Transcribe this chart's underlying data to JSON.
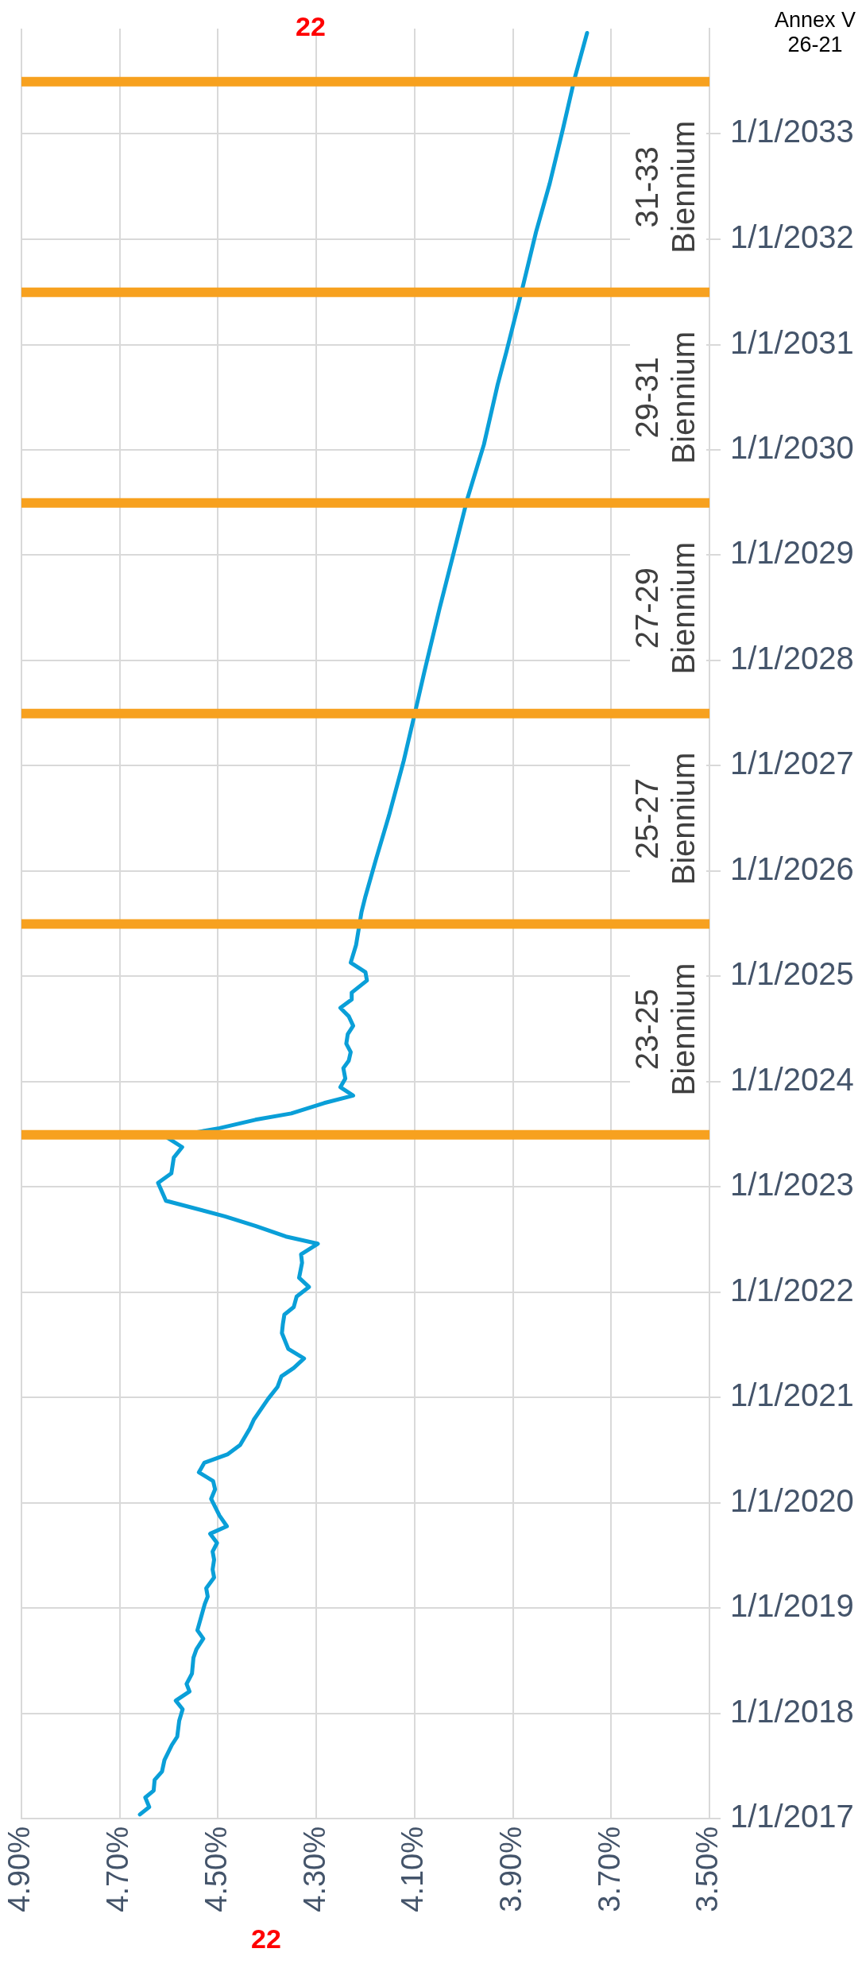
{
  "chart_data": {
    "type": "line",
    "orientation": "horizontal",
    "marker": "none",
    "grid": true,
    "annotations": [
      "22",
      "22",
      "Annex V\n26-21",
      "23-25 Biennium",
      "25-27 Biennium",
      "27-29 Biennium",
      "29-31 Biennium",
      "31-33 Biennium"
    ],
    "x": [
      "2017-01-15",
      "2017-02-10",
      "2017-03-15",
      "2017-04-08",
      "2017-05-15",
      "2017-06-13",
      "2017-07-23",
      "2017-09-13",
      "2017-10-12",
      "2017-12-06",
      "2018-01-15",
      "2018-02-14",
      "2018-03-18",
      "2018-04-13",
      "2018-05-19",
      "2018-07-13",
      "2018-08-11",
      "2018-09-17",
      "2018-10-16",
      "2019-01-15",
      "2019-02-10",
      "2019-03-11",
      "2019-04-17",
      "2019-05-15",
      "2019-06-18",
      "2019-07-16",
      "2019-08-15",
      "2019-09-16",
      "2019-10-12",
      "2019-11-18",
      "2020-01-15",
      "2020-02-17",
      "2020-03-17",
      "2020-04-16",
      "2020-05-19",
      "2020-06-18",
      "2020-07-20",
      "2020-09-16",
      "2020-10-16",
      "2020-12-27",
      "2021-02-06",
      "2021-03-15",
      "2021-04-13",
      "2021-05-16",
      "2021-06-18",
      "2021-08-12",
      "2021-09-13",
      "2021-10-15",
      "2021-11-10",
      "2021-12-17",
      "2022-01-19",
      "2022-02-20",
      "2022-04-13",
      "2022-05-12",
      "2022-06-18",
      "2022-07-13",
      "2022-08-19",
      "2022-09-21",
      "2022-11-14",
      "2023-01-15",
      "2023-02-17",
      "2023-04-13",
      "2023-05-19",
      "2023-06-21",
      "2023-07-24",
      "2023-08-22",
      "2023-09-13",
      "2023-10-19",
      "2023-11-14",
      "2023-12-13",
      "2024-01-12",
      "2024-02-17",
      "2024-03-14",
      "2024-04-13",
      "2024-05-12",
      "2024-06-14",
      "2024-07-13",
      "2024-08-15",
      "2024-09-13",
      "2024-10-12",
      "2024-11-05",
      "2024-12-17",
      "2025-01-15",
      "2025-02-17",
      "2025-04-20",
      "2025-08-12",
      "2025-10-05",
      "2026-02-14",
      "2026-07-13",
      "2027-01-19",
      "2027-07-06",
      "2027-11-24",
      "2028-07-01",
      "2029-02-14",
      "2029-07-13",
      "2030-01-19",
      "2030-08-15",
      "2030-12-08",
      "2031-07-13",
      "2032-01-26",
      "2032-07-13",
      "2033-01-19",
      "2033-07-08",
      "2033-12-17"
    ],
    "series": [
      {
        "color": "#0a9fd8",
        "values": [
          4.659,
          4.64,
          4.648,
          4.631,
          4.629,
          4.614,
          4.609,
          4.594,
          4.583,
          4.579,
          4.572,
          4.586,
          4.558,
          4.564,
          4.553,
          4.55,
          4.544,
          4.53,
          4.542,
          4.527,
          4.521,
          4.524,
          4.508,
          4.511,
          4.508,
          4.511,
          4.502,
          4.516,
          4.482,
          4.497,
          4.514,
          4.506,
          4.51,
          4.539,
          4.528,
          4.48,
          4.455,
          4.435,
          4.427,
          4.398,
          4.379,
          4.371,
          4.346,
          4.325,
          4.357,
          4.37,
          4.368,
          4.365,
          4.346,
          4.34,
          4.315,
          4.335,
          4.329,
          4.331,
          4.297,
          4.362,
          4.424,
          4.486,
          4.606,
          4.622,
          4.595,
          4.59,
          4.573,
          4.603,
          4.497,
          4.424,
          4.351,
          4.284,
          4.225,
          4.251,
          4.241,
          4.245,
          4.234,
          4.23,
          4.239,
          4.236,
          4.225,
          4.234,
          4.251,
          4.228,
          4.228,
          4.197,
          4.2,
          4.23,
          4.219,
          4.208,
          4.2,
          4.178,
          4.152,
          4.122,
          4.099,
          4.08,
          4.049,
          4.015,
          3.993,
          3.959,
          3.931,
          3.913,
          3.881,
          3.853,
          3.825,
          3.798,
          3.775,
          3.749
        ]
      }
    ],
    "ylim": [
      "2017-01-01",
      "2034-01-01"
    ],
    "yticks": [
      {
        "value": "2017-01-01",
        "label": "1/1/2017"
      },
      {
        "value": "2018-01-01",
        "label": "1/1/2018"
      },
      {
        "value": "2019-01-01",
        "label": "1/1/2019"
      },
      {
        "value": "2020-01-01",
        "label": "1/1/2020"
      },
      {
        "value": "2021-01-01",
        "label": "1/1/2021"
      },
      {
        "value": "2022-01-01",
        "label": "1/1/2022"
      },
      {
        "value": "2023-01-01",
        "label": "1/1/2023"
      },
      {
        "value": "2024-01-01",
        "label": "1/1/2024"
      },
      {
        "value": "2025-01-01",
        "label": "1/1/2025"
      },
      {
        "value": "2026-01-01",
        "label": "1/1/2026"
      },
      {
        "value": "2027-01-01",
        "label": "1/1/2027"
      },
      {
        "value": "2028-01-01",
        "label": "1/1/2028"
      },
      {
        "value": "2029-01-01",
        "label": "1/1/2029"
      },
      {
        "value": "2030-01-01",
        "label": "1/1/2030"
      },
      {
        "value": "2031-01-01",
        "label": "1/1/2031"
      },
      {
        "value": "2032-01-01",
        "label": "1/1/2032"
      },
      {
        "value": "2033-01-01",
        "label": "1/1/2033"
      }
    ],
    "xlim": [
      4.9,
      3.5
    ],
    "xticks": [
      {
        "value": 3.5,
        "label": "3.50%"
      },
      {
        "value": 3.7,
        "label": "3.70%"
      },
      {
        "value": 3.9,
        "label": "3.90%"
      },
      {
        "value": 4.1,
        "label": "4.10%"
      },
      {
        "value": 4.3,
        "label": "4.30%"
      },
      {
        "value": 4.5,
        "label": "4.50%"
      },
      {
        "value": 4.7,
        "label": "4.70%"
      },
      {
        "value": 4.9,
        "label": "4.90%"
      }
    ],
    "ref_lines": [
      {
        "axis": "y",
        "value": "2023-07-01",
        "color": "#f7a11f"
      },
      {
        "axis": "y",
        "value": "2025-07-01",
        "color": "#f7a11f"
      },
      {
        "axis": "y",
        "value": "2027-07-01",
        "color": "#f7a11f"
      },
      {
        "axis": "y",
        "value": "2029-07-01",
        "color": "#f7a11f"
      },
      {
        "axis": "y",
        "value": "2031-07-01",
        "color": "#f7a11f"
      },
      {
        "axis": "y",
        "value": "2033-07-01",
        "color": "#f7a11f"
      }
    ]
  }
}
